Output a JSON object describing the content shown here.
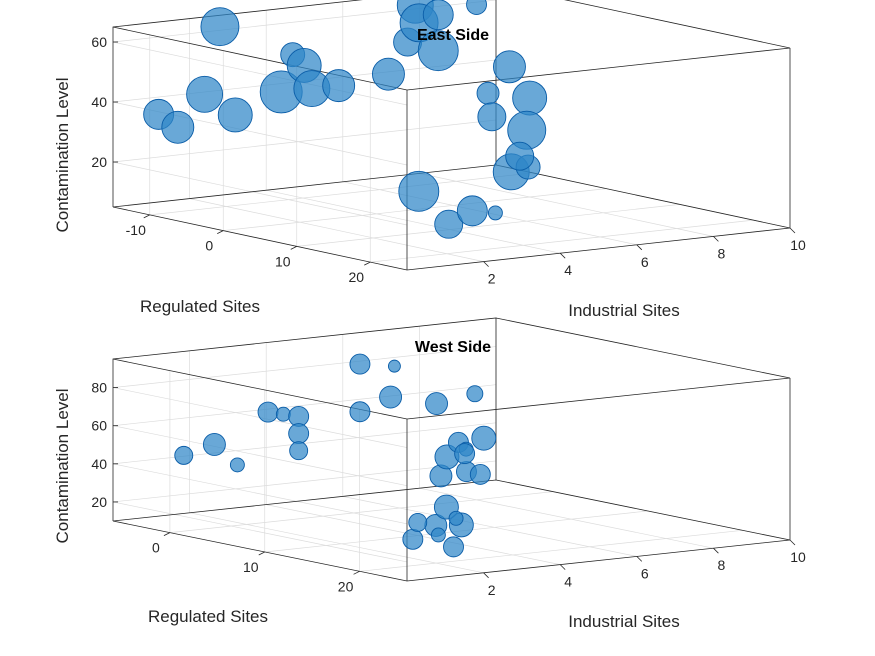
{
  "colors": {
    "bubble_fill": "#2f86c8",
    "bubble_edge": "#0a5da8",
    "axis": "#262626",
    "grid": "#dcdcdc"
  },
  "chart_data": [
    {
      "type": "scatter",
      "subtype": "bubble3",
      "title": "East Side",
      "xlabel": "Industrial Sites",
      "ylabel": "Regulated Sites",
      "zlabel": "Contamination Level",
      "xlim": [
        0,
        10
      ],
      "ylim": [
        -15,
        25
      ],
      "zlim": [
        5,
        65
      ],
      "xticks": [
        2,
        4,
        6,
        8,
        10
      ],
      "yticks": [
        -10,
        0,
        10,
        20
      ],
      "zticks": [
        20,
        40,
        60
      ],
      "grid": true,
      "points": [
        {
          "x": 0.5,
          "y": 24,
          "z": 30,
          "size": 20
        },
        {
          "x": 2.5,
          "y": 24,
          "z": 20,
          "size": 7
        },
        {
          "x": 3.2,
          "y": 14,
          "z": 10,
          "size": 14
        },
        {
          "x": 4.2,
          "y": 12,
          "z": 12,
          "size": 15
        },
        {
          "x": 5.6,
          "y": 10,
          "z": 22,
          "size": 18
        },
        {
          "x": 7.0,
          "y": 5,
          "z": 19,
          "size": 12
        },
        {
          "x": 8.0,
          "y": 0,
          "z": 38,
          "size": 17
        },
        {
          "x": 8.5,
          "y": -3,
          "z": 25,
          "size": 19
        },
        {
          "x": 8.7,
          "y": -5,
          "z": 15,
          "size": 14
        },
        {
          "x": 9.2,
          "y": -9,
          "z": 42,
          "size": 16
        },
        {
          "x": 9.6,
          "y": -14,
          "z": 30,
          "size": 11
        },
        {
          "x": 9.7,
          "y": -14,
          "z": 22,
          "size": 14
        },
        {
          "x": 1.0,
          "y": -14,
          "z": 35,
          "size": 15
        },
        {
          "x": 1.5,
          "y": -14,
          "z": 30,
          "size": 16
        },
        {
          "x": 2.2,
          "y": -14,
          "z": 40,
          "size": 18
        },
        {
          "x": 2.6,
          "y": -14,
          "z": 62,
          "size": 19
        },
        {
          "x": 3.0,
          "y": -14,
          "z": 32,
          "size": 17
        },
        {
          "x": 4.2,
          "y": -14,
          "z": 38,
          "size": 21
        },
        {
          "x": 4.5,
          "y": -14,
          "z": 50,
          "size": 12
        },
        {
          "x": 4.8,
          "y": -14,
          "z": 46,
          "size": 17
        },
        {
          "x": 5.0,
          "y": -14,
          "z": 38,
          "size": 18
        },
        {
          "x": 5.7,
          "y": -14,
          "z": 38,
          "size": 16
        },
        {
          "x": 7.0,
          "y": -14,
          "z": 40,
          "size": 16
        },
        {
          "x": 7.5,
          "y": -14,
          "z": 50,
          "size": 14
        },
        {
          "x": 7.7,
          "y": -14,
          "z": 62,
          "size": 18
        },
        {
          "x": 7.8,
          "y": -14,
          "z": 56,
          "size": 19
        },
        {
          "x": 8.3,
          "y": -14,
          "z": 58,
          "size": 15
        },
        {
          "x": 8.3,
          "y": -14,
          "z": 46,
          "size": 20
        },
        {
          "x": 9.3,
          "y": -14,
          "z": 60,
          "size": 10
        }
      ]
    },
    {
      "type": "scatter",
      "subtype": "bubble3",
      "title": "West Side",
      "xlabel": "Industrial Sites",
      "ylabel": "Regulated Sites",
      "zlabel": "Contamination Level",
      "xlim": [
        0,
        10
      ],
      "ylim": [
        -6,
        25
      ],
      "zlim": [
        10,
        95
      ],
      "xticks": [
        2,
        4,
        6,
        8,
        10
      ],
      "yticks": [
        0,
        10,
        20
      ],
      "zticks": [
        20,
        40,
        60,
        80
      ],
      "grid": true,
      "points": [
        {
          "x": 0.4,
          "y": 24,
          "z": 30,
          "size": 10
        },
        {
          "x": 1.0,
          "y": 24,
          "z": 36,
          "size": 11
        },
        {
          "x": 2.7,
          "y": 19,
          "z": 16,
          "size": 10
        },
        {
          "x": 2.8,
          "y": 17,
          "z": 20,
          "size": 7
        },
        {
          "x": 3.4,
          "y": 17,
          "z": 24,
          "size": 12
        },
        {
          "x": 3.5,
          "y": 12,
          "z": 20,
          "size": 9
        },
        {
          "x": 4.0,
          "y": 13,
          "z": 28,
          "size": 12
        },
        {
          "x": 4.5,
          "y": 12,
          "z": 20,
          "size": 7
        },
        {
          "x": 4.6,
          "y": 10,
          "z": 40,
          "size": 11
        },
        {
          "x": 5.5,
          "y": 7,
          "z": 45,
          "size": 12
        },
        {
          "x": 5.8,
          "y": 7,
          "z": 52,
          "size": 10
        },
        {
          "x": 6.0,
          "y": 7,
          "z": 48,
          "size": 7
        },
        {
          "x": 7.0,
          "y": 3,
          "z": 30,
          "size": 10
        },
        {
          "x": 7.2,
          "y": 2,
          "z": 38,
          "size": 10
        },
        {
          "x": 7.7,
          "y": 2,
          "z": 45,
          "size": 12
        },
        {
          "x": 8.6,
          "y": -2,
          "z": 20,
          "size": 10
        },
        {
          "x": 1.6,
          "y": -5,
          "z": 42,
          "size": 9
        },
        {
          "x": 2.4,
          "y": -5,
          "z": 46,
          "size": 11
        },
        {
          "x": 3.0,
          "y": -5,
          "z": 34,
          "size": 7
        },
        {
          "x": 3.8,
          "y": -5,
          "z": 60,
          "size": 10
        },
        {
          "x": 4.2,
          "y": -5,
          "z": 58,
          "size": 7
        },
        {
          "x": 4.6,
          "y": -5,
          "z": 56,
          "size": 10
        },
        {
          "x": 4.6,
          "y": -5,
          "z": 47,
          "size": 10
        },
        {
          "x": 4.6,
          "y": -5,
          "z": 38,
          "size": 9
        },
        {
          "x": 6.2,
          "y": -5,
          "z": 80,
          "size": 10
        },
        {
          "x": 6.2,
          "y": -5,
          "z": 55,
          "size": 10
        },
        {
          "x": 7.0,
          "y": -5,
          "z": 61,
          "size": 11
        },
        {
          "x": 7.1,
          "y": -5,
          "z": 77,
          "size": 6
        },
        {
          "x": 8.2,
          "y": -5,
          "z": 55,
          "size": 11
        },
        {
          "x": 9.2,
          "y": -5,
          "z": 58,
          "size": 8
        }
      ]
    }
  ]
}
